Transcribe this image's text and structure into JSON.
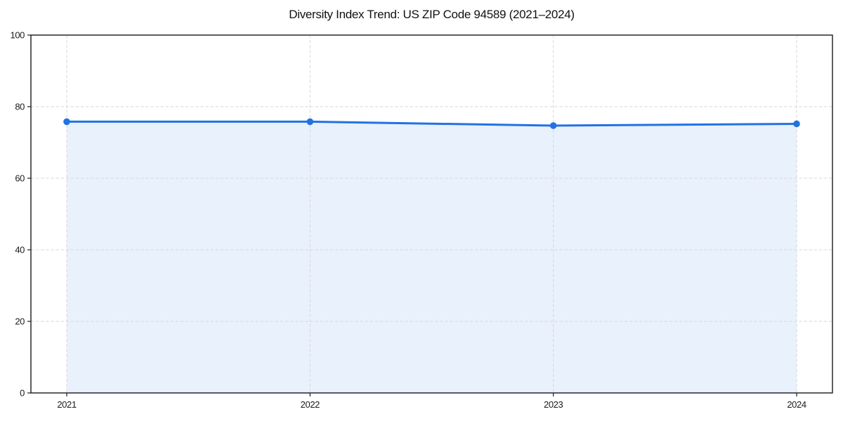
{
  "page": {
    "title": "Diversity Index Trend: US ZIP Code 94589 (2021–2024)"
  },
  "colors": {
    "line": "#2272e3",
    "marker": "#2272e3",
    "area_fill": "#e9f1fc",
    "grid": "#d7d7d7",
    "axis": "#1a1a1a",
    "tick_label": "#1a1a1a",
    "background": "#ffffff"
  },
  "chart_data": {
    "type": "line",
    "title": "Diversity Index Trend: US ZIP Code 94589 (2021–2024)",
    "x": [
      2021,
      2022,
      2023,
      2024
    ],
    "xticks": [
      "2021",
      "2022",
      "2023",
      "2024"
    ],
    "series": [
      {
        "name": "Diversity Index",
        "values": [
          75.8,
          75.8,
          74.7,
          75.2
        ]
      }
    ],
    "xlabel": "",
    "ylabel": "",
    "ylim": [
      0,
      100
    ],
    "yticks": [
      0,
      20,
      40,
      60,
      80,
      100
    ],
    "grid": true,
    "grid_style": "dashed",
    "legend_position": "none",
    "area_fill": true,
    "markers": true
  }
}
